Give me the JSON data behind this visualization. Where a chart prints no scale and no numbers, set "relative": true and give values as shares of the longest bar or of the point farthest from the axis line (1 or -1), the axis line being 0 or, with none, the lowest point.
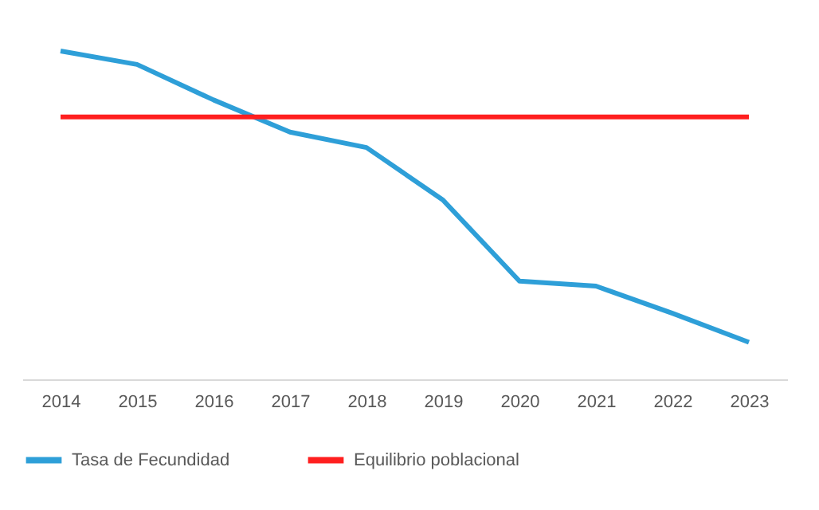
{
  "chart_data": {
    "type": "line",
    "categories": [
      "2014",
      "2015",
      "2016",
      "2017",
      "2018",
      "2019",
      "2020",
      "2021",
      "2022",
      "2023"
    ],
    "relative": true,
    "grid": false,
    "legend": "bottom",
    "marker": "none",
    "line_style": "solid",
    "series": [
      {
        "name": "Tasa de Fecundidad",
        "color": "#2e9fd8",
        "values": [
          1.0,
          0.959,
          0.851,
          0.753,
          0.706,
          0.546,
          0.299,
          0.284,
          0.201,
          0.113
        ]
      },
      {
        "name": "Equilibrio poblacional",
        "color": "#ff1f1f",
        "values": [
          0.799,
          0.799,
          0.799,
          0.799,
          0.799,
          0.799,
          0.799,
          0.799,
          0.799,
          0.799
        ]
      }
    ]
  }
}
